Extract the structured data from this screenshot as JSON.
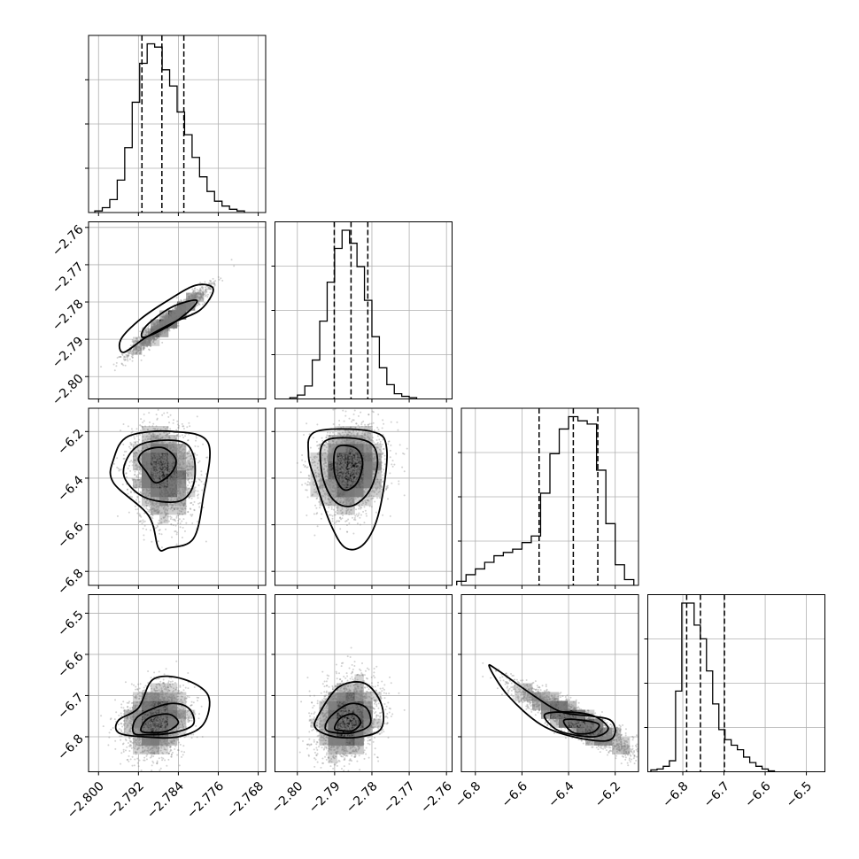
{
  "figure": {
    "title": ""
  },
  "colors": {
    "ink": "#000000",
    "grid": "#b0b0b0",
    "scatter": "#7f7f7f",
    "background": "#ffffff"
  },
  "chart_data": {
    "type": "corner",
    "grid": true,
    "dimensions": [
      {
        "label": "",
        "range": [
          -2.802,
          -2.7665
        ],
        "ticks": [
          -2.8,
          -2.792,
          -2.784,
          -2.776,
          -2.768
        ],
        "tick_labels": [
          "−2.800",
          "−2.792",
          "−2.784",
          "−2.776",
          "−2.768"
        ],
        "hist_x": [
          -2.8,
          -2.7985,
          -2.797,
          -2.7955,
          -2.794,
          -2.7925,
          -2.791,
          -2.7895,
          -2.788,
          -2.7865,
          -2.785,
          -2.7835,
          -2.782,
          -2.7805,
          -2.779,
          -2.7775,
          -2.776,
          -2.7745,
          -2.773,
          -2.7715
        ],
        "hist_counts": [
          1,
          3,
          8,
          20,
          40,
          68,
          92,
          104,
          102,
          88,
          78,
          62,
          48,
          34,
          22,
          13,
          7,
          4,
          2,
          1
        ],
        "quantiles": [
          -2.7913,
          -2.7873,
          -2.7829
        ]
      },
      {
        "label": "",
        "range": [
          -2.806,
          -2.7585
        ],
        "ticks": [
          -2.8,
          -2.79,
          -2.78,
          -2.77,
          -2.76
        ],
        "tick_labels": [
          "−2.80",
          "−2.79",
          "−2.78",
          "−2.77",
          "−2.76"
        ],
        "hist_x": [
          -2.801,
          -2.799,
          -2.797,
          -2.795,
          -2.793,
          -2.791,
          -2.789,
          -2.787,
          -2.785,
          -2.783,
          -2.781,
          -2.779,
          -2.777,
          -2.775,
          -2.773,
          -2.771,
          -2.769
        ],
        "hist_counts": [
          1,
          3,
          10,
          30,
          60,
          90,
          116,
          130,
          120,
          102,
          76,
          48,
          24,
          11,
          4,
          2,
          1
        ],
        "quantiles": [
          -2.7901,
          -2.7856,
          -2.7811
        ]
      },
      {
        "label": "",
        "range": [
          -6.86,
          -6.1
        ],
        "ticks": [
          -6.8,
          -6.6,
          -6.4,
          -6.2
        ],
        "tick_labels": [
          "−6.8",
          "−6.6",
          "−6.4",
          "−6.2"
        ],
        "hist_x": [
          -6.86,
          -6.82,
          -6.78,
          -6.74,
          -6.7,
          -6.66,
          -6.62,
          -6.58,
          -6.54,
          -6.5,
          -6.46,
          -6.42,
          -6.38,
          -6.34,
          -6.3,
          -6.26,
          -6.22,
          -6.18,
          -6.14
        ],
        "hist_counts": [
          5,
          13,
          20,
          28,
          36,
          40,
          44,
          52,
          60,
          112,
          160,
          190,
          205,
          200,
          196,
          140,
          75,
          25,
          7
        ],
        "quantiles": [
          -6.5265,
          -6.3797,
          -6.2746
        ]
      },
      {
        "label": "",
        "range": [
          -6.885,
          -6.455
        ],
        "ticks": [
          -6.8,
          -6.7,
          -6.6,
          -6.5
        ],
        "tick_labels": [
          "−6.8",
          "−6.7",
          "−6.6",
          "−6.5"
        ],
        "hist_x": [
          -6.87,
          -6.855,
          -6.84,
          -6.825,
          -6.81,
          -6.795,
          -6.78,
          -6.765,
          -6.75,
          -6.735,
          -6.72,
          -6.705,
          -6.69,
          -6.675,
          -6.66,
          -6.645,
          -6.63,
          -6.615,
          -6.6,
          -6.585
        ],
        "hist_counts": [
          2,
          3,
          6,
          12,
          88,
          184,
          184,
          160,
          145,
          110,
          74,
          46,
          35,
          29,
          24,
          16,
          10,
          6,
          3,
          1
        ],
        "quantiles": [
          -6.7906,
          -6.7572,
          -6.6989
        ]
      }
    ],
    "pairs": [
      {
        "x_dim": 0,
        "y_dim": 1,
        "modes": [
          {
            "cx": -2.786,
            "cy": -2.785,
            "sx": 0.0035,
            "sy": 0.004,
            "rho": 0.96,
            "w": 1.0
          }
        ],
        "contours": [
          [
            [
              -2.795,
              -2.7935
            ],
            [
              -2.7905,
              -2.7895
            ],
            [
              -2.785,
              -2.7855
            ],
            [
              -2.7795,
              -2.782
            ],
            [
              -2.777,
              -2.7765
            ],
            [
              -2.7805,
              -2.7755
            ],
            [
              -2.786,
              -2.7795
            ],
            [
              -2.7915,
              -2.7845
            ],
            [
              -2.7955,
              -2.79
            ]
          ],
          [
            [
              -2.791,
              -2.7895
            ],
            [
              -2.786,
              -2.7865
            ],
            [
              -2.7815,
              -2.782
            ],
            [
              -2.7805,
              -2.7795
            ],
            [
              -2.7855,
              -2.7815
            ],
            [
              -2.7905,
              -2.7865
            ]
          ]
        ]
      },
      {
        "x_dim": 0,
        "y_dim": 2,
        "modes": [
          {
            "cx": -2.7875,
            "cy": -6.34,
            "sx": 0.003,
            "sy": 0.08,
            "rho": 0.0,
            "w": 0.8
          },
          {
            "cx": -2.786,
            "cy": -6.44,
            "sx": 0.0028,
            "sy": 0.09,
            "rho": 0.1,
            "w": 0.4
          }
        ],
        "contours": [
          [
            [
              -2.794,
              -6.22
            ],
            [
              -2.785,
              -6.2
            ],
            [
              -2.778,
              -6.25
            ],
            [
              -2.779,
              -6.48
            ],
            [
              -2.781,
              -6.66
            ],
            [
              -2.786,
              -6.7
            ],
            [
              -2.788,
              -6.7
            ],
            [
              -2.79,
              -6.56
            ],
            [
              -2.797,
              -6.42
            ],
            [
              -2.797,
              -6.32
            ]
          ],
          [
            [
              -2.792,
              -6.26
            ],
            [
              -2.784,
              -6.24
            ],
            [
              -2.781,
              -6.3
            ],
            [
              -2.781,
              -6.43
            ],
            [
              -2.784,
              -6.5
            ],
            [
              -2.791,
              -6.48
            ],
            [
              -2.795,
              -6.38
            ]
          ],
          [
            [
              -2.7905,
              -6.28
            ],
            [
              -2.787,
              -6.27
            ],
            [
              -2.7845,
              -6.32
            ],
            [
              -2.7855,
              -6.38
            ],
            [
              -2.7885,
              -6.42
            ],
            [
              -2.7905,
              -6.37
            ],
            [
              -2.792,
              -6.32
            ]
          ]
        ]
      },
      {
        "x_dim": 1,
        "y_dim": 2,
        "modes": [
          {
            "cx": -2.786,
            "cy": -6.36,
            "sx": 0.0045,
            "sy": 0.09,
            "rho": 0.1,
            "w": 1.0
          }
        ],
        "contours": [
          [
            [
              -2.795,
              -6.2
            ],
            [
              -2.78,
              -6.2
            ],
            [
              -2.776,
              -6.28
            ],
            [
              -2.778,
              -6.54
            ],
            [
              -2.782,
              -6.68
            ],
            [
              -2.787,
              -6.7
            ],
            [
              -2.791,
              -6.6
            ],
            [
              -2.795,
              -6.42
            ],
            [
              -2.797,
              -6.3
            ]
          ],
          [
            [
              -2.7925,
              -6.24
            ],
            [
              -2.7815,
              -6.24
            ],
            [
              -2.7785,
              -6.32
            ],
            [
              -2.7805,
              -6.45
            ],
            [
              -2.7855,
              -6.52
            ],
            [
              -2.7905,
              -6.49
            ],
            [
              -2.7935,
              -6.37
            ]
          ],
          [
            [
              -2.7895,
              -6.27
            ],
            [
              -2.7845,
              -6.27
            ],
            [
              -2.7825,
              -6.33
            ],
            [
              -2.784,
              -6.42
            ],
            [
              -2.7875,
              -6.45
            ],
            [
              -2.79,
              -6.38
            ]
          ]
        ]
      },
      {
        "x_dim": 0,
        "y_dim": 3,
        "modes": [
          {
            "cx": -2.7885,
            "cy": -6.76,
            "sx": 0.003,
            "sy": 0.04,
            "rho": 0.15,
            "w": 1.0
          }
        ],
        "contours": [
          [
            [
              -2.796,
              -6.79
            ],
            [
              -2.796,
              -6.76
            ],
            [
              -2.792,
              -6.73
            ],
            [
              -2.789,
              -6.66
            ],
            [
              -2.783,
              -6.66
            ],
            [
              -2.778,
              -6.7
            ],
            [
              -2.779,
              -6.77
            ],
            [
              -2.784,
              -6.8
            ],
            [
              -2.791,
              -6.8
            ]
          ],
          [
            [
              -2.793,
              -6.79
            ],
            [
              -2.792,
              -6.75
            ],
            [
              -2.786,
              -6.72
            ],
            [
              -2.782,
              -6.73
            ],
            [
              -2.781,
              -6.77
            ],
            [
              -2.785,
              -6.79
            ],
            [
              -2.79,
              -6.795
            ]
          ],
          [
            [
              -2.7915,
              -6.785
            ],
            [
              -2.79,
              -6.755
            ],
            [
              -2.786,
              -6.745
            ],
            [
              -2.784,
              -6.765
            ],
            [
              -2.786,
              -6.785
            ],
            [
              -2.789,
              -6.79
            ]
          ]
        ]
      },
      {
        "x_dim": 1,
        "y_dim": 3,
        "modes": [
          {
            "cx": -2.7865,
            "cy": -6.755,
            "sx": 0.004,
            "sy": 0.045,
            "rho": 0.15,
            "w": 1.0
          }
        ],
        "contours": [
          [
            [
              -2.795,
              -6.78
            ],
            [
              -2.7945,
              -6.75
            ],
            [
              -2.789,
              -6.68
            ],
            [
              -2.782,
              -6.67
            ],
            [
              -2.7775,
              -6.72
            ],
            [
              -2.7775,
              -6.78
            ],
            [
              -2.783,
              -6.8
            ],
            [
              -2.79,
              -6.8
            ]
          ],
          [
            [
              -2.7925,
              -6.78
            ],
            [
              -2.791,
              -6.75
            ],
            [
              -2.786,
              -6.72
            ],
            [
              -2.7815,
              -6.73
            ],
            [
              -2.7805,
              -6.77
            ],
            [
              -2.785,
              -6.79
            ],
            [
              -2.79,
              -6.79
            ]
          ],
          [
            [
              -2.79,
              -6.78
            ],
            [
              -2.7885,
              -6.755
            ],
            [
              -2.785,
              -6.745
            ],
            [
              -2.783,
              -6.765
            ],
            [
              -2.785,
              -6.785
            ],
            [
              -2.788,
              -6.785
            ]
          ]
        ]
      },
      {
        "x_dim": 2,
        "y_dim": 3,
        "modes": [
          {
            "cx": -6.38,
            "cy": -6.758,
            "sx": 0.12,
            "sy": 0.04,
            "rho": -0.9,
            "w": 1.0
          }
        ],
        "contours": [
          [
            [
              -6.74,
              -6.63
            ],
            [
              -6.7,
              -6.64
            ],
            [
              -6.55,
              -6.7
            ],
            [
              -6.43,
              -6.74
            ],
            [
              -6.3,
              -6.75
            ],
            [
              -6.22,
              -6.76
            ],
            [
              -6.2,
              -6.79
            ],
            [
              -6.24,
              -6.81
            ],
            [
              -6.38,
              -6.8
            ],
            [
              -6.52,
              -6.77
            ],
            [
              -6.66,
              -6.7
            ]
          ],
          [
            [
              -6.5,
              -6.745
            ],
            [
              -6.4,
              -6.74
            ],
            [
              -6.29,
              -6.75
            ],
            [
              -6.23,
              -6.78
            ],
            [
              -6.29,
              -6.8
            ],
            [
              -6.42,
              -6.79
            ],
            [
              -6.48,
              -6.77
            ]
          ],
          [
            [
              -6.42,
              -6.76
            ],
            [
              -6.34,
              -6.76
            ],
            [
              -6.27,
              -6.77
            ],
            [
              -6.3,
              -6.79
            ],
            [
              -6.38,
              -6.79
            ]
          ]
        ]
      }
    ]
  }
}
